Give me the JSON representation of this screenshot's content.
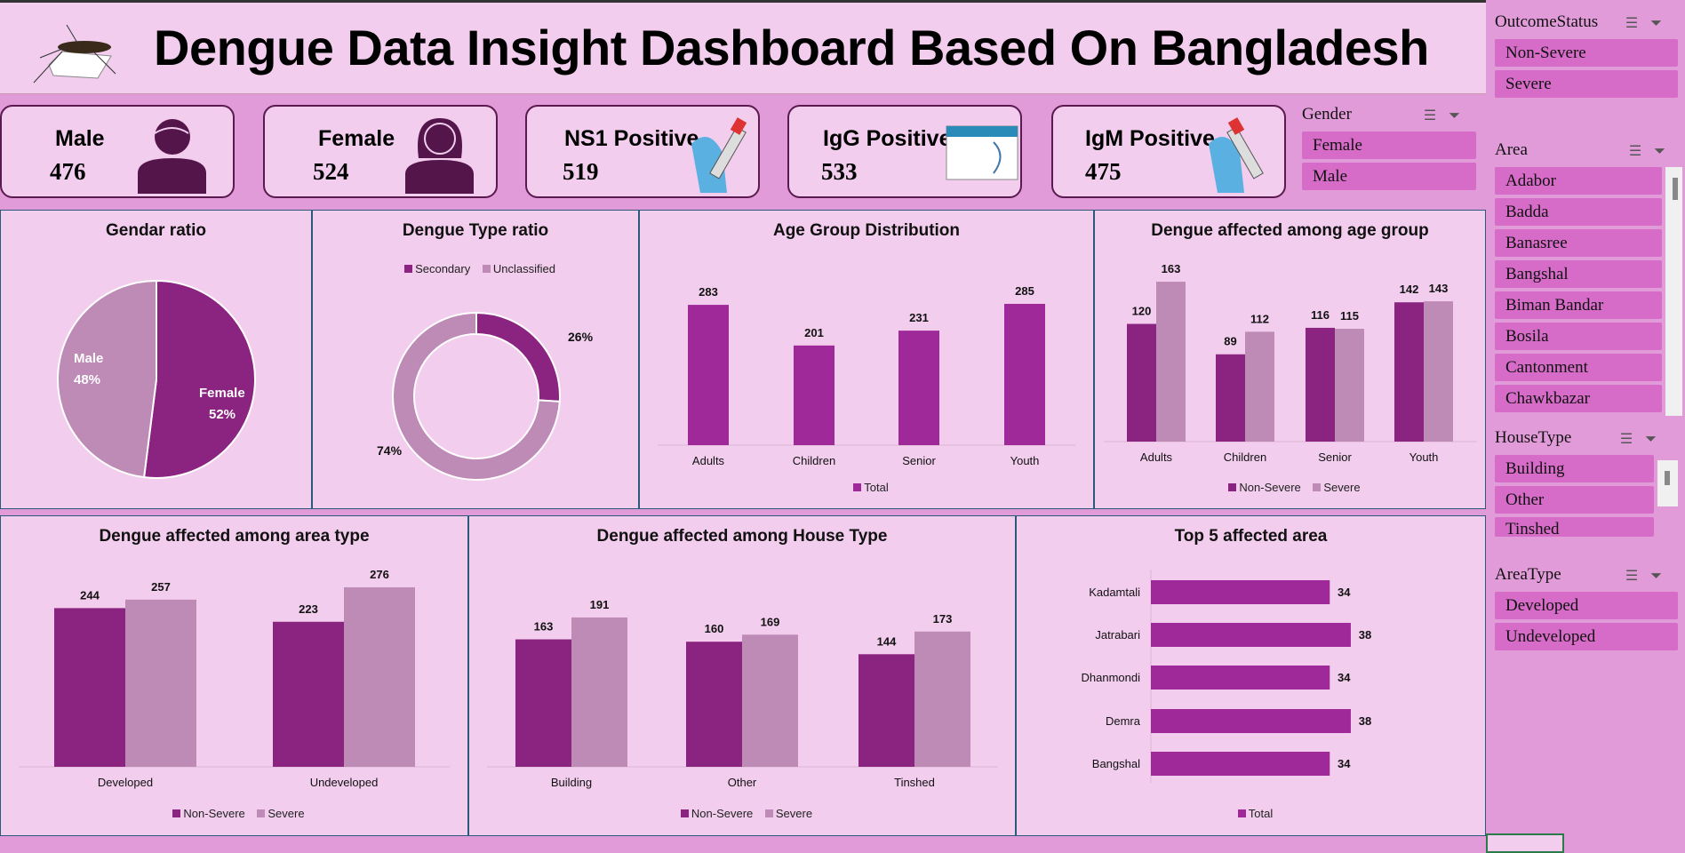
{
  "header": {
    "title": "Dengue Data Insight Dashboard Based On Bangladesh"
  },
  "kpis": [
    {
      "label": "Male",
      "value": "476"
    },
    {
      "label": "Female",
      "value": "524"
    },
    {
      "label": "NS1 Positive",
      "value": "519"
    },
    {
      "label": "IgG Positive",
      "value": "533"
    },
    {
      "label": "IgM Positive",
      "value": "475"
    }
  ],
  "slicers": {
    "gender": {
      "title": "Gender",
      "items": [
        "Female",
        "Male"
      ]
    },
    "outcome": {
      "title": "OutcomeStatus",
      "items": [
        "Non-Severe",
        "Severe"
      ]
    },
    "area": {
      "title": "Area",
      "items": [
        "Adabor",
        "Badda",
        "Banasree",
        "Bangshal",
        "Biman Bandar",
        "Bosila",
        "Cantonment",
        "Chawkbazar"
      ]
    },
    "house": {
      "title": "HouseType",
      "items": [
        "Building",
        "Other",
        "Tinshed"
      ]
    },
    "areatype": {
      "title": "AreaType",
      "items": [
        "Developed",
        "Undeveloped"
      ]
    }
  },
  "colors": {
    "non_severe": "#8B2381",
    "severe": "#BE8AB6",
    "total": "#A0299A",
    "panel": "#F2CDED",
    "slicer_item": "#D66BC8"
  },
  "chart_data": [
    {
      "id": "gender",
      "type": "pie",
      "title": "Gendar ratio",
      "categories": [
        "Male",
        "Female"
      ],
      "values": [
        48,
        52
      ],
      "labels": [
        "48%",
        "52%"
      ]
    },
    {
      "id": "dtype",
      "type": "pie",
      "title": "Dengue Type ratio",
      "categories": [
        "Secondary",
        "Unclassified"
      ],
      "values": [
        26,
        74
      ],
      "labels": [
        "26%",
        "74%"
      ]
    },
    {
      "id": "age",
      "type": "bar",
      "title": "Age Group Distribution",
      "categories": [
        "Adults",
        "Children",
        "Senior",
        "Youth"
      ],
      "series": [
        {
          "name": "Total",
          "values": [
            283,
            201,
            231,
            285
          ]
        }
      ]
    },
    {
      "id": "agesev",
      "type": "bar",
      "title": "Dengue affected among age group",
      "categories": [
        "Adults",
        "Children",
        "Senior",
        "Youth"
      ],
      "series": [
        {
          "name": "Non-Severe",
          "values": [
            120,
            89,
            116,
            142
          ]
        },
        {
          "name": "Severe",
          "values": [
            163,
            112,
            115,
            143
          ]
        }
      ]
    },
    {
      "id": "areatype",
      "type": "bar",
      "title": "Dengue affected among area type",
      "categories": [
        "Developed",
        "Undeveloped"
      ],
      "series": [
        {
          "name": "Non-Severe",
          "values": [
            244,
            223
          ]
        },
        {
          "name": "Severe",
          "values": [
            257,
            276
          ]
        }
      ]
    },
    {
      "id": "house",
      "type": "bar",
      "title": "Dengue affected among House Type",
      "categories": [
        "Building",
        "Other",
        "Tinshed"
      ],
      "series": [
        {
          "name": "Non-Severe",
          "values": [
            163,
            160,
            144
          ]
        },
        {
          "name": "Severe",
          "values": [
            191,
            169,
            173
          ]
        }
      ]
    },
    {
      "id": "top5",
      "type": "bar",
      "orientation": "horizontal",
      "title": "Top 5 affected area",
      "categories": [
        "Kadamtali",
        "Jatrabari",
        "Dhanmondi",
        "Demra",
        "Bangshal"
      ],
      "series": [
        {
          "name": "Total",
          "values": [
            34,
            38,
            34,
            38,
            34
          ]
        }
      ]
    }
  ]
}
